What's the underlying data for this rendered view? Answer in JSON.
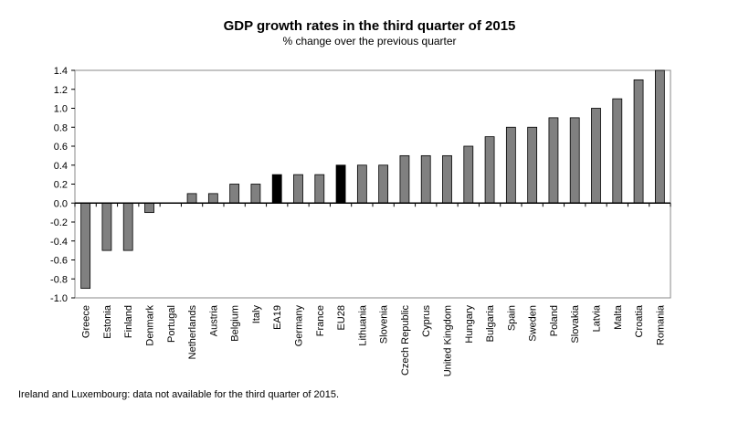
{
  "chart_data": {
    "type": "bar",
    "title": "GDP growth rates in the third quarter of 2015",
    "subtitle": "% change over the previous quarter",
    "xlabel": "",
    "ylabel": "",
    "ylim": [
      -1.0,
      1.4
    ],
    "yticks": [
      "1.4",
      "1.2",
      "1.0",
      "0.8",
      "0.6",
      "0.4",
      "0.2",
      "0.0",
      "-0.2",
      "-0.4",
      "-0.6",
      "-0.8",
      "-1.0"
    ],
    "categories": [
      "Greece",
      "Estonia",
      "Finland",
      "Denmark",
      "Portugal",
      "Netherlands",
      "Austria",
      "Belgium",
      "Italy",
      "EA19",
      "Germany",
      "France",
      "EU28",
      "Lithuania",
      "Slovenia",
      "Czech Republic",
      "Cyprus",
      "United Kingdom",
      "Hungary",
      "Bulgaria",
      "Spain",
      "Sweden",
      "Poland",
      "Slovakia",
      "Latvia",
      "Malta",
      "Croatia",
      "Romania"
    ],
    "values": [
      -0.9,
      -0.5,
      -0.5,
      -0.1,
      0.0,
      0.1,
      0.1,
      0.2,
      0.2,
      0.3,
      0.3,
      0.3,
      0.4,
      0.4,
      0.4,
      0.5,
      0.5,
      0.5,
      0.6,
      0.7,
      0.8,
      0.8,
      0.9,
      0.9,
      1.0,
      1.1,
      1.3,
      1.4
    ],
    "highlighted": [
      "EA19",
      "EU28"
    ],
    "bar_color": "#808080",
    "highlight_color": "#000000",
    "grid": false
  },
  "footnote": "Ireland and Luxembourg: data not available for the third quarter of 2015."
}
